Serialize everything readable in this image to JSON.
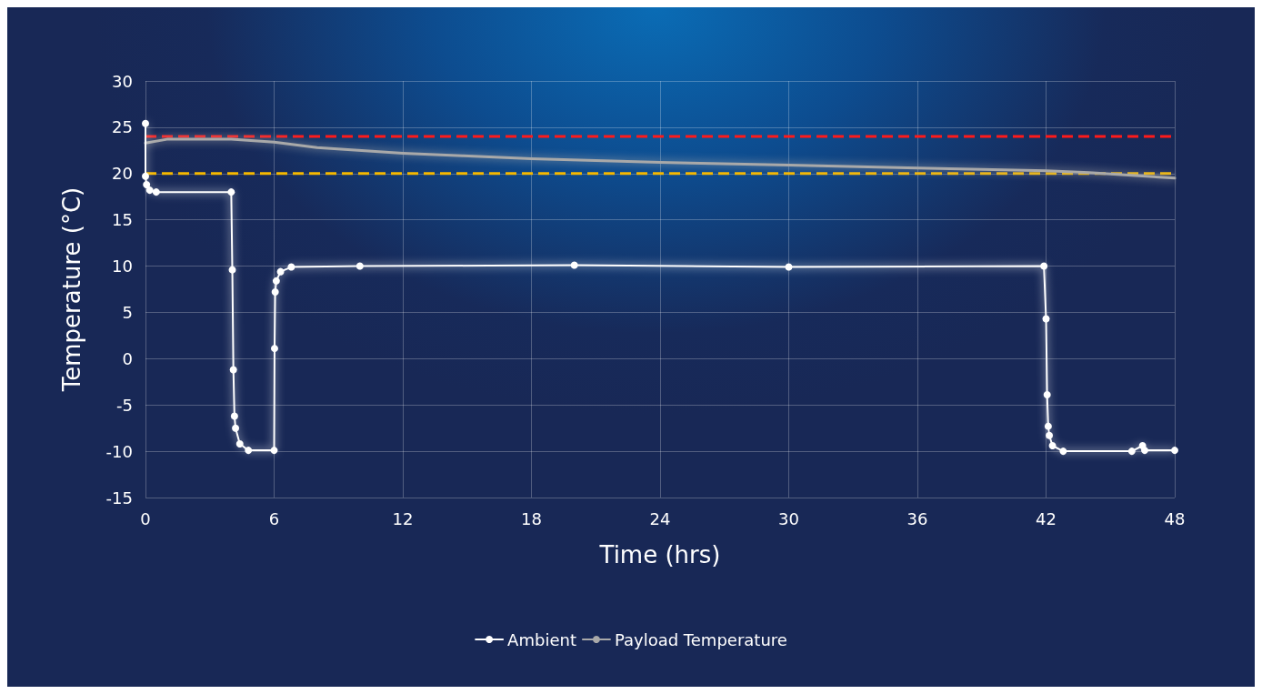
{
  "chart_data": {
    "type": "line",
    "xlabel": "Time (hrs)",
    "ylabel": "Temperature (°C)",
    "xlim": [
      0,
      48
    ],
    "xticks": [
      0,
      6,
      12,
      18,
      24,
      30,
      36,
      42,
      48
    ],
    "ylim": [
      -15,
      30
    ],
    "yticks": [
      -15,
      -10,
      -5,
      0,
      5,
      10,
      15,
      20,
      25,
      30
    ],
    "grid": true,
    "legend": "bottom",
    "line_style": "solid",
    "series": [
      {
        "name": "Ambient",
        "color": "#ffffff",
        "marker": "circle",
        "x": [
          0,
          0,
          0.05,
          0.2,
          0.5,
          4,
          4.05,
          4.1,
          4.15,
          4.2,
          4.4,
          4.8,
          6,
          6.02,
          6.05,
          6.1,
          6.3,
          6.8,
          10,
          20,
          30,
          41.9,
          42,
          42.05,
          42.1,
          42.15,
          42.3,
          42.8,
          46,
          46.5,
          46.6,
          48
        ],
        "values": [
          25.4,
          19.7,
          18.8,
          18.2,
          18,
          18,
          9.6,
          -1.2,
          -6.2,
          -7.5,
          -9.2,
          -9.9,
          -9.9,
          1.1,
          7.2,
          8.4,
          9.4,
          9.9,
          10,
          10.1,
          9.9,
          10,
          4.3,
          -3.9,
          -7.3,
          -8.3,
          -9.4,
          -10,
          -10,
          -9.4,
          -9.9,
          -9.9
        ]
      },
      {
        "name": "Payload Temperature",
        "color": "#a9a9a9",
        "marker": "none",
        "x": [
          0,
          1,
          4,
          6,
          8,
          12,
          18,
          24,
          30,
          36,
          42,
          44,
          46,
          48
        ],
        "values": [
          23.3,
          23.7,
          23.7,
          23.4,
          22.8,
          22.2,
          21.6,
          21.2,
          20.9,
          20.6,
          20.3,
          20.1,
          19.8,
          19.5
        ]
      }
    ],
    "ref_lines": [
      {
        "axis": "y",
        "value": 24,
        "color": "#ff1a1a",
        "line_style": "dashed"
      },
      {
        "axis": "y",
        "value": 20,
        "color": "#f5b800",
        "line_style": "dashed"
      }
    ]
  }
}
